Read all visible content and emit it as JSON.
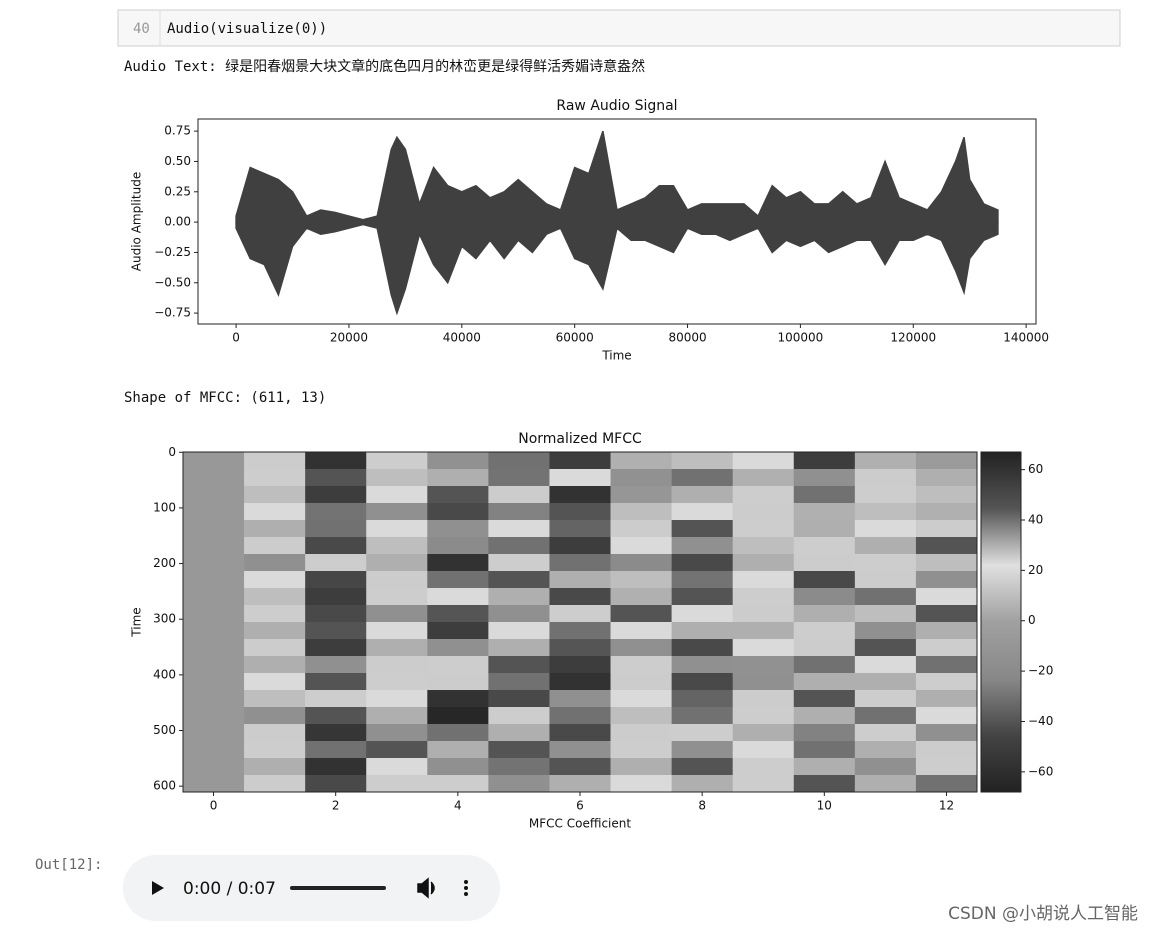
{
  "cell": {
    "line_number": "40",
    "code": "Audio(visualize(0))"
  },
  "audio_text": "Audio Text: 绿是阳春烟景大块文章的底色四月的林峦更是绿得鲜活秀媚诗意盎然",
  "shape_text": "Shape of MFCC: (611, 13)",
  "out_prompt": "Out[12]:",
  "audio_player": {
    "time": "0:00 / 0:07"
  },
  "watermark": "CSDN @小胡说人工智能",
  "chart_data": [
    {
      "type": "area",
      "title": "Raw Audio Signal",
      "xlabel": "Time",
      "ylabel": "Audio Amplitude",
      "x": [
        0,
        2500,
        5000,
        7500,
        10000,
        12500,
        15000,
        17500,
        20000,
        22500,
        25000,
        27500,
        28500,
        30000,
        32500,
        35000,
        37500,
        40000,
        42500,
        45000,
        47500,
        50000,
        52500,
        55000,
        57500,
        60000,
        62500,
        65000,
        67500,
        70000,
        72500,
        75000,
        77500,
        80000,
        82500,
        85000,
        87500,
        90000,
        92500,
        95000,
        97500,
        100000,
        102500,
        105000,
        107500,
        110000,
        112500,
        115000,
        117500,
        120000,
        122500,
        125000,
        127500,
        129000,
        130000,
        132500,
        135000
      ],
      "series": [
        {
          "color": "#404040",
          "values": [
            0.05,
            0.45,
            0.4,
            0.35,
            0.25,
            0.05,
            0.1,
            0.08,
            0.05,
            0.02,
            0.05,
            0.6,
            0.7,
            0.6,
            0.15,
            0.45,
            0.3,
            0.25,
            0.3,
            0.2,
            0.25,
            0.35,
            0.25,
            0.15,
            0.1,
            0.45,
            0.4,
            0.75,
            0.1,
            0.15,
            0.2,
            0.3,
            0.3,
            0.1,
            0.15,
            0.15,
            0.15,
            0.15,
            0.05,
            0.3,
            0.2,
            0.25,
            0.15,
            0.15,
            0.25,
            0.15,
            0.2,
            0.5,
            0.2,
            0.15,
            0.1,
            0.25,
            0.5,
            0.7,
            0.35,
            0.15,
            0.1
          ]
        },
        {
          "color": "#404040",
          "values": [
            -0.05,
            -0.3,
            -0.35,
            -0.6,
            -0.2,
            -0.05,
            -0.1,
            -0.08,
            -0.05,
            -0.02,
            -0.05,
            -0.6,
            -0.75,
            -0.55,
            -0.1,
            -0.35,
            -0.5,
            -0.2,
            -0.3,
            -0.15,
            -0.3,
            -0.15,
            -0.25,
            -0.1,
            -0.05,
            -0.3,
            -0.35,
            -0.55,
            -0.05,
            -0.15,
            -0.15,
            -0.2,
            -0.25,
            -0.05,
            -0.1,
            -0.1,
            -0.15,
            -0.1,
            -0.05,
            -0.25,
            -0.15,
            -0.2,
            -0.15,
            -0.25,
            -0.2,
            -0.15,
            -0.15,
            -0.35,
            -0.15,
            -0.15,
            -0.1,
            -0.15,
            -0.4,
            -0.58,
            -0.3,
            -0.15,
            -0.1
          ]
        }
      ],
      "xlim": [
        -6750,
        141750
      ],
      "ylim": [
        -0.84,
        0.85
      ],
      "xticks": [
        0,
        20000,
        40000,
        60000,
        80000,
        100000,
        120000,
        140000
      ],
      "yticks": [
        {
          "value": -0.75,
          "label": "−0.75"
        },
        {
          "value": -0.5,
          "label": "−0.50"
        },
        {
          "value": -0.25,
          "label": "−0.25"
        },
        {
          "value": 0,
          "label": "0.00"
        },
        {
          "value": 0.25,
          "label": "0.25"
        },
        {
          "value": 0.5,
          "label": "0.50"
        },
        {
          "value": 0.75,
          "label": "0.75"
        }
      ],
      "grid": false
    },
    {
      "type": "heatmap",
      "title": "Normalized MFCC",
      "xlabel": "MFCC Coefficient",
      "ylabel": "Time",
      "xlim": [
        -0.5,
        12.5
      ],
      "ylim": [
        610.5,
        -0.5
      ],
      "xticks": [
        0,
        2,
        4,
        6,
        8,
        10,
        12
      ],
      "yticks": [
        0,
        100,
        200,
        300,
        400,
        500,
        600
      ],
      "z": [
        [
          -8,
          15,
          60,
          25,
          -15,
          40,
          55,
          5,
          10,
          20,
          55,
          5,
          -5
        ],
        [
          -8,
          25,
          45,
          10,
          30,
          -30,
          20,
          -15,
          40,
          5,
          35,
          15,
          30
        ],
        [
          -8,
          10,
          55,
          20,
          45,
          15,
          60,
          -10,
          30,
          25,
          40,
          25,
          10
        ],
        [
          -8,
          20,
          -30,
          35,
          50,
          -25,
          45,
          10,
          20,
          15,
          5,
          10,
          5
        ],
        [
          -8,
          30,
          40,
          20,
          35,
          20,
          -35,
          15,
          45,
          25,
          30,
          20,
          15
        ],
        [
          -8,
          15,
          50,
          10,
          -20,
          40,
          55,
          20,
          35,
          10,
          25,
          30,
          45
        ],
        [
          -8,
          35,
          25,
          30,
          60,
          25,
          40,
          -20,
          50,
          30,
          15,
          25,
          10
        ],
        [
          -8,
          20,
          -45,
          15,
          40,
          45,
          30,
          10,
          -30,
          20,
          50,
          15,
          35
        ],
        [
          -8,
          10,
          55,
          25,
          20,
          30,
          50,
          5,
          45,
          25,
          -20,
          40,
          20
        ],
        [
          -8,
          25,
          50,
          35,
          -40,
          35,
          25,
          45,
          20,
          15,
          30,
          10,
          45
        ],
        [
          -8,
          30,
          45,
          20,
          55,
          20,
          40,
          20,
          30,
          30,
          25,
          35,
          30
        ],
        [
          -8,
          15,
          -50,
          30,
          35,
          30,
          -40,
          35,
          50,
          20,
          15,
          45,
          25
        ],
        [
          -8,
          30,
          35,
          15,
          25,
          45,
          55,
          25,
          35,
          -15,
          40,
          20,
          40
        ],
        [
          -8,
          20,
          45,
          25,
          15,
          40,
          60,
          15,
          50,
          35,
          30,
          30,
          25
        ],
        [
          -8,
          10,
          25,
          20,
          60,
          50,
          35,
          20,
          -35,
          15,
          45,
          25,
          30
        ],
        [
          -8,
          35,
          45,
          30,
          65,
          25,
          40,
          10,
          40,
          25,
          30,
          40,
          20
        ],
        [
          -8,
          15,
          -55,
          35,
          40,
          30,
          50,
          15,
          25,
          30,
          -25,
          25,
          35
        ],
        [
          -8,
          25,
          40,
          45,
          30,
          45,
          35,
          25,
          35,
          20,
          40,
          30,
          15
        ],
        [
          -8,
          30,
          60,
          20,
          35,
          -30,
          45,
          30,
          45,
          25,
          30,
          35,
          25
        ],
        [
          -8,
          15,
          50,
          25,
          25,
          35,
          30,
          20,
          30,
          25,
          45,
          30,
          40
        ]
      ],
      "colormap": [
        "#222222",
        "#444444",
        "#888888",
        "#a0a0a0",
        "#e0e0e0",
        "#555555",
        "#222222"
      ],
      "colorbar": {
        "lim": [
          -68,
          67
        ],
        "ticks": [
          {
            "value": -60,
            "label": "−60"
          },
          {
            "value": -40,
            "label": "−40"
          },
          {
            "value": -20,
            "label": "−20"
          },
          0,
          20,
          40,
          60
        ]
      }
    }
  ]
}
